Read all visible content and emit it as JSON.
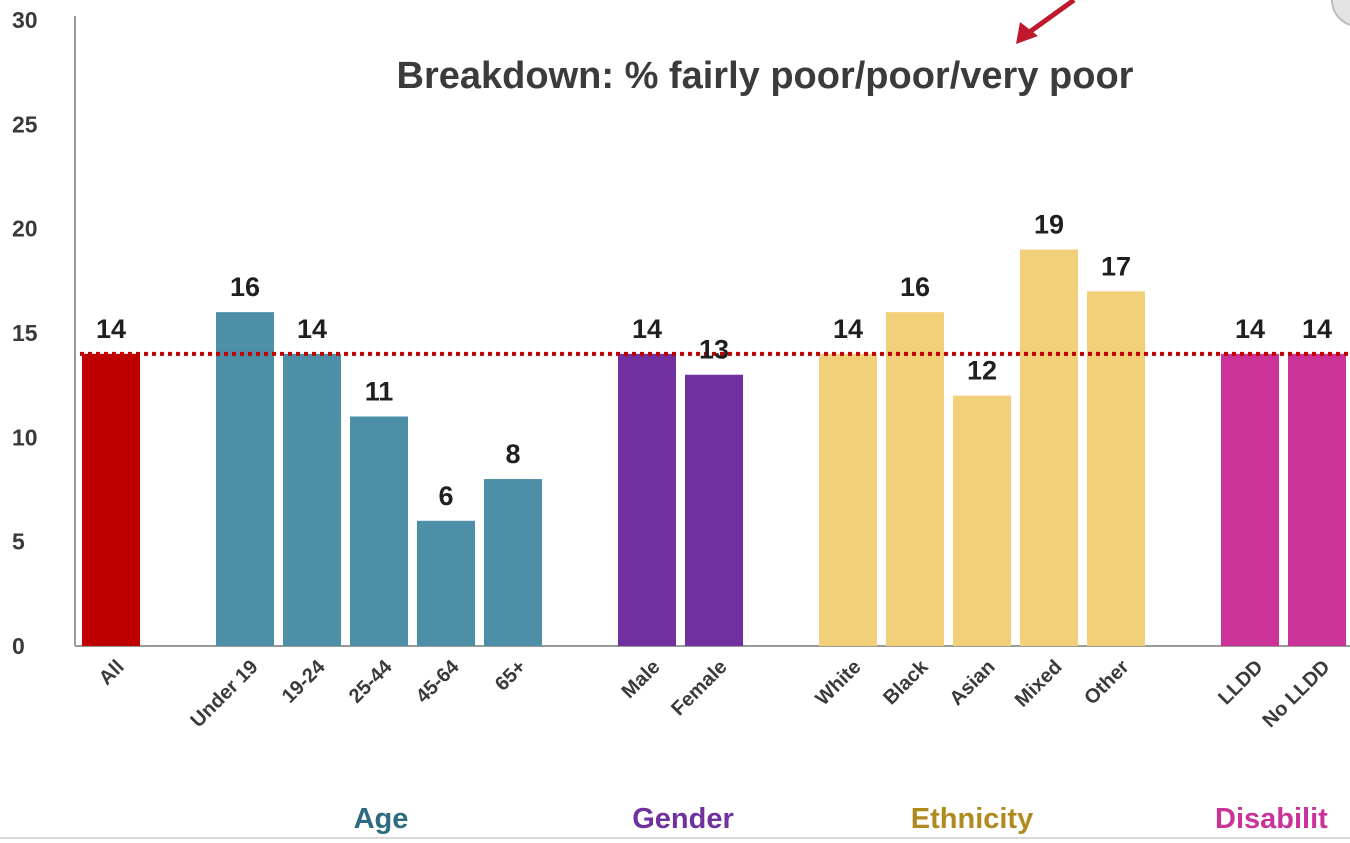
{
  "chart_data": {
    "type": "bar",
    "title": "Breakdown: % fairly poor/poor/very poor",
    "ylim": [
      0,
      30
    ],
    "yticks": [
      0,
      5,
      10,
      15,
      20,
      25,
      30
    ],
    "grid": false,
    "reference_line": {
      "value": 14,
      "color": "#c00000",
      "style": "dotted"
    },
    "categories": [
      "All",
      "Under 19",
      "19-24",
      "25-44",
      "45-64",
      "65+",
      "Male",
      "Female",
      "White",
      "Black",
      "Asian",
      "Mixed",
      "Other",
      "LLDD",
      "No LLDD"
    ],
    "values": [
      14,
      16,
      14,
      11,
      6,
      8,
      14,
      13,
      14,
      16,
      12,
      19,
      17,
      14,
      14
    ],
    "bar_groups": [
      "All",
      "Age",
      "Age",
      "Age",
      "Age",
      "Age",
      "Gender",
      "Gender",
      "Ethnicity",
      "Ethnicity",
      "Ethnicity",
      "Ethnicity",
      "Ethnicity",
      "Disability",
      "Disability"
    ],
    "groups": [
      {
        "key": "All",
        "label": "",
        "color": "#c00000"
      },
      {
        "key": "Age",
        "label": "Age",
        "color": "#4e8fa8",
        "label_color": "#2f6b80"
      },
      {
        "key": "Gender",
        "label": "Gender",
        "color": "#7030a0",
        "label_color": "#7030a0"
      },
      {
        "key": "Ethnicity",
        "label": "Ethnicity",
        "color": "#f2d07a",
        "label_color": "#b08a1e"
      },
      {
        "key": "Disability",
        "label": "Disabilit",
        "color": "#cc3399",
        "label_color": "#cc3399"
      }
    ]
  }
}
